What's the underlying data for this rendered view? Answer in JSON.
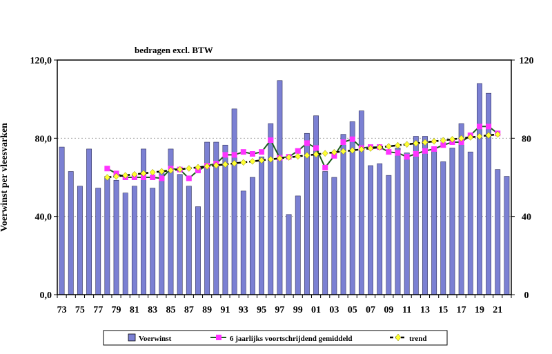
{
  "chart_data": {
    "type": "bar",
    "subtitle": "bedragen excl. BTW",
    "ylabel": "Voerwinst per vleesvarken",
    "ylim": [
      0,
      120
    ],
    "yticks_left": [
      "0,0",
      "40,0",
      "80,0",
      "120,0"
    ],
    "yticks_right": [
      "0",
      "40",
      "80",
      "120"
    ],
    "ytick_values": [
      0,
      40,
      80,
      120
    ],
    "years": [
      "73",
      "74",
      "75",
      "76",
      "77",
      "78",
      "79",
      "80",
      "81",
      "82",
      "83",
      "84",
      "85",
      "86",
      "87",
      "88",
      "89",
      "90",
      "91",
      "92",
      "93",
      "94",
      "95",
      "96",
      "97",
      "98",
      "99",
      "00",
      "01",
      "02",
      "03",
      "04",
      "05",
      "06",
      "07",
      "08",
      "09",
      "10",
      "11",
      "12",
      "13",
      "14",
      "15",
      "16",
      "17",
      "18",
      "19",
      "20",
      "21",
      "22"
    ],
    "xtick_labels": [
      "73",
      "75",
      "77",
      "79",
      "81",
      "83",
      "85",
      "87",
      "89",
      "91",
      "93",
      "95",
      "97",
      "99",
      "01",
      "03",
      "05",
      "07",
      "09",
      "11",
      "13",
      "15",
      "17",
      "19",
      "21"
    ],
    "series": [
      {
        "name": "Voerwinst",
        "kind": "bar",
        "color": "#7b80d3",
        "values": [
          75.5,
          63,
          55.5,
          74.5,
          54.5,
          60.5,
          58.5,
          52,
          55.5,
          74.5,
          54.5,
          63,
          74.5,
          61.5,
          55.5,
          45,
          78,
          78,
          76.5,
          95,
          53,
          60,
          70.5,
          87.5,
          109.5,
          41,
          50.5,
          82.5,
          91.5,
          63,
          60,
          82,
          88.5,
          94,
          66,
          67,
          61,
          75,
          72.5,
          81,
          81,
          73.5,
          68,
          75,
          87.5,
          73,
          108,
          103,
          64,
          60.5
        ]
      },
      {
        "name": "6 jaarlijks voortschrijdend gemiddeld",
        "kind": "line",
        "color": "#1a5c1a",
        "marker_color": "#ff33ff",
        "start_index": 5,
        "values": [
          64.5,
          62,
          60,
          60,
          60,
          60,
          59.5,
          64.5,
          64,
          59.5,
          63.5,
          66,
          67,
          71.5,
          71.5,
          73,
          72,
          73,
          79,
          70,
          70.5,
          73.5,
          77.5,
          75,
          65,
          71,
          78,
          79.5,
          75,
          75.5,
          75.5,
          73,
          72.5,
          70.5,
          72,
          73.5,
          74.5,
          76.5,
          78,
          78,
          81.5,
          86,
          86,
          82.5
        ]
      },
      {
        "name": "trend",
        "kind": "line",
        "color": "#000000",
        "marker_color": "#ffff33",
        "start_index": 5,
        "values": [
          60.0,
          60.51,
          61.02,
          61.53,
          62.05,
          62.56,
          63.07,
          63.58,
          64.09,
          64.6,
          65.12,
          65.63,
          66.14,
          66.65,
          67.16,
          67.67,
          68.19,
          68.7,
          69.21,
          69.72,
          70.23,
          70.74,
          71.26,
          71.77,
          72.28,
          72.79,
          73.3,
          73.81,
          74.33,
          74.84,
          75.35,
          75.86,
          76.37,
          76.88,
          77.4,
          77.91,
          78.42,
          78.93,
          79.44,
          79.95,
          80.47,
          80.98,
          81.49,
          82.0
        ]
      }
    ],
    "legend": {
      "placement": "bottom",
      "entries": [
        "Voerwinst",
        "6 jaarlijks voortschrijdend gemiddeld",
        "trend"
      ]
    }
  }
}
